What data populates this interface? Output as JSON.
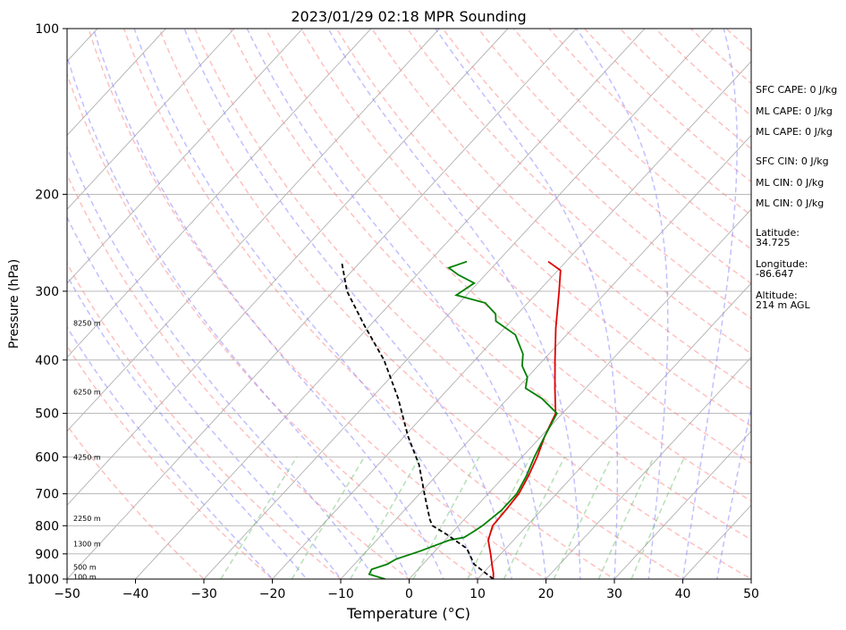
{
  "chart_data": {
    "type": "line",
    "title": "2023/01/29 02:18 MPR Sounding",
    "xlabel": "Temperature (°C)",
    "ylabel": "Pressure (hPa)",
    "xlim": [
      -50,
      50
    ],
    "ylim": [
      1000,
      100
    ],
    "y_scale": "log",
    "grid": true,
    "x_ticks": [
      "−50",
      "−40",
      "−30",
      "−20",
      "−10",
      "0",
      "10",
      "20",
      "30",
      "40",
      "50"
    ],
    "y_ticks": [
      "1000",
      "900",
      "800",
      "700",
      "600",
      "500",
      "400",
      "300",
      "200",
      "100"
    ],
    "series": [
      {
        "color": "#e00000",
        "points": [
          [
            12.3,
            1000
          ],
          [
            11.5,
            975
          ],
          [
            10.5,
            950
          ],
          [
            8.5,
            900
          ],
          [
            6.3,
            850
          ],
          [
            5.0,
            800
          ],
          [
            4.8,
            750
          ],
          [
            4.5,
            700
          ],
          [
            3.5,
            650
          ],
          [
            2.2,
            600
          ],
          [
            0.5,
            550
          ],
          [
            -1.0,
            500
          ],
          [
            -4.5,
            450
          ],
          [
            -8.3,
            400
          ],
          [
            -12.5,
            350
          ],
          [
            -17.0,
            300
          ],
          [
            -19.6,
            275
          ],
          [
            -22.6,
            265
          ]
        ]
      },
      {
        "color": "#008000",
        "points": [
          [
            -3.5,
            1000
          ],
          [
            -6.5,
            980
          ],
          [
            -6.8,
            960
          ],
          [
            -5.2,
            940
          ],
          [
            -4.6,
            920
          ],
          [
            -2.2,
            890
          ],
          [
            -0.8,
            870
          ],
          [
            0.6,
            850
          ],
          [
            2.4,
            840
          ],
          [
            3.0,
            820
          ],
          [
            3.5,
            800
          ],
          [
            4.2,
            750
          ],
          [
            4.2,
            700
          ],
          [
            3.2,
            650
          ],
          [
            1.8,
            600
          ],
          [
            0.5,
            550
          ],
          [
            -0.8,
            500
          ],
          [
            -5.0,
            470
          ],
          [
            -8.8,
            450
          ],
          [
            -10.0,
            430
          ],
          [
            -12.3,
            410
          ],
          [
            -13.8,
            390
          ],
          [
            -17.5,
            360
          ],
          [
            -22.2,
            340
          ],
          [
            -23.2,
            330
          ],
          [
            -26.2,
            315
          ],
          [
            -31.5,
            305
          ],
          [
            -30.5,
            290
          ],
          [
            -34.0,
            280
          ],
          [
            -36.3,
            272
          ],
          [
            -34.5,
            265
          ]
        ]
      },
      {
        "color": "#000000",
        "dashed": true,
        "points": [
          [
            12.3,
            1000
          ],
          [
            7.5,
            940
          ],
          [
            4.3,
            880
          ],
          [
            -0.5,
            830
          ],
          [
            -3.8,
            800
          ],
          [
            -5.0,
            780
          ],
          [
            -9.3,
            700
          ],
          [
            -14.0,
            620
          ],
          [
            -19.5,
            550
          ],
          [
            -26.0,
            470
          ],
          [
            -33.3,
            400
          ],
          [
            -41.0,
            345
          ],
          [
            -48.0,
            300
          ],
          [
            -52.8,
            265
          ]
        ]
      }
    ],
    "altitude_labels": [
      {
        "text": "100 m",
        "p": 990
      },
      {
        "text": "500 m",
        "p": 950
      },
      {
        "text": "1300 m",
        "p": 862
      },
      {
        "text": "2250 m",
        "p": 775
      },
      {
        "text": "4250 m",
        "p": 600
      },
      {
        "text": "6250 m",
        "p": 457
      },
      {
        "text": "8250 m",
        "p": 343
      }
    ],
    "side_info": {
      "sfc_cape": "SFC CAPE: 0 J/kg",
      "ml_cape_1": "ML CAPE: 0 J/kg",
      "ml_cape_2": "ML CAPE: 0 J/kg",
      "sfc_cin": "SFC CIN: 0 J/kg",
      "ml_cin_1": "ML CIN: 0 J/kg",
      "ml_cin_2": "ML CIN: 0 J/kg",
      "lat_label": "Latitude:",
      "lat_value": "34.725",
      "lon_label": "Longitude:",
      "lon_value": "-86.647",
      "alt_label": "Altitude:",
      "alt_value": "214 m AGL"
    },
    "background_line_colors": {
      "isotherm": "#b0b0b0",
      "dry_adiabat": "#ff8c8c",
      "moist_adiabat": "#8c8cff",
      "mixing_ratio": "#6fbf6f"
    }
  }
}
